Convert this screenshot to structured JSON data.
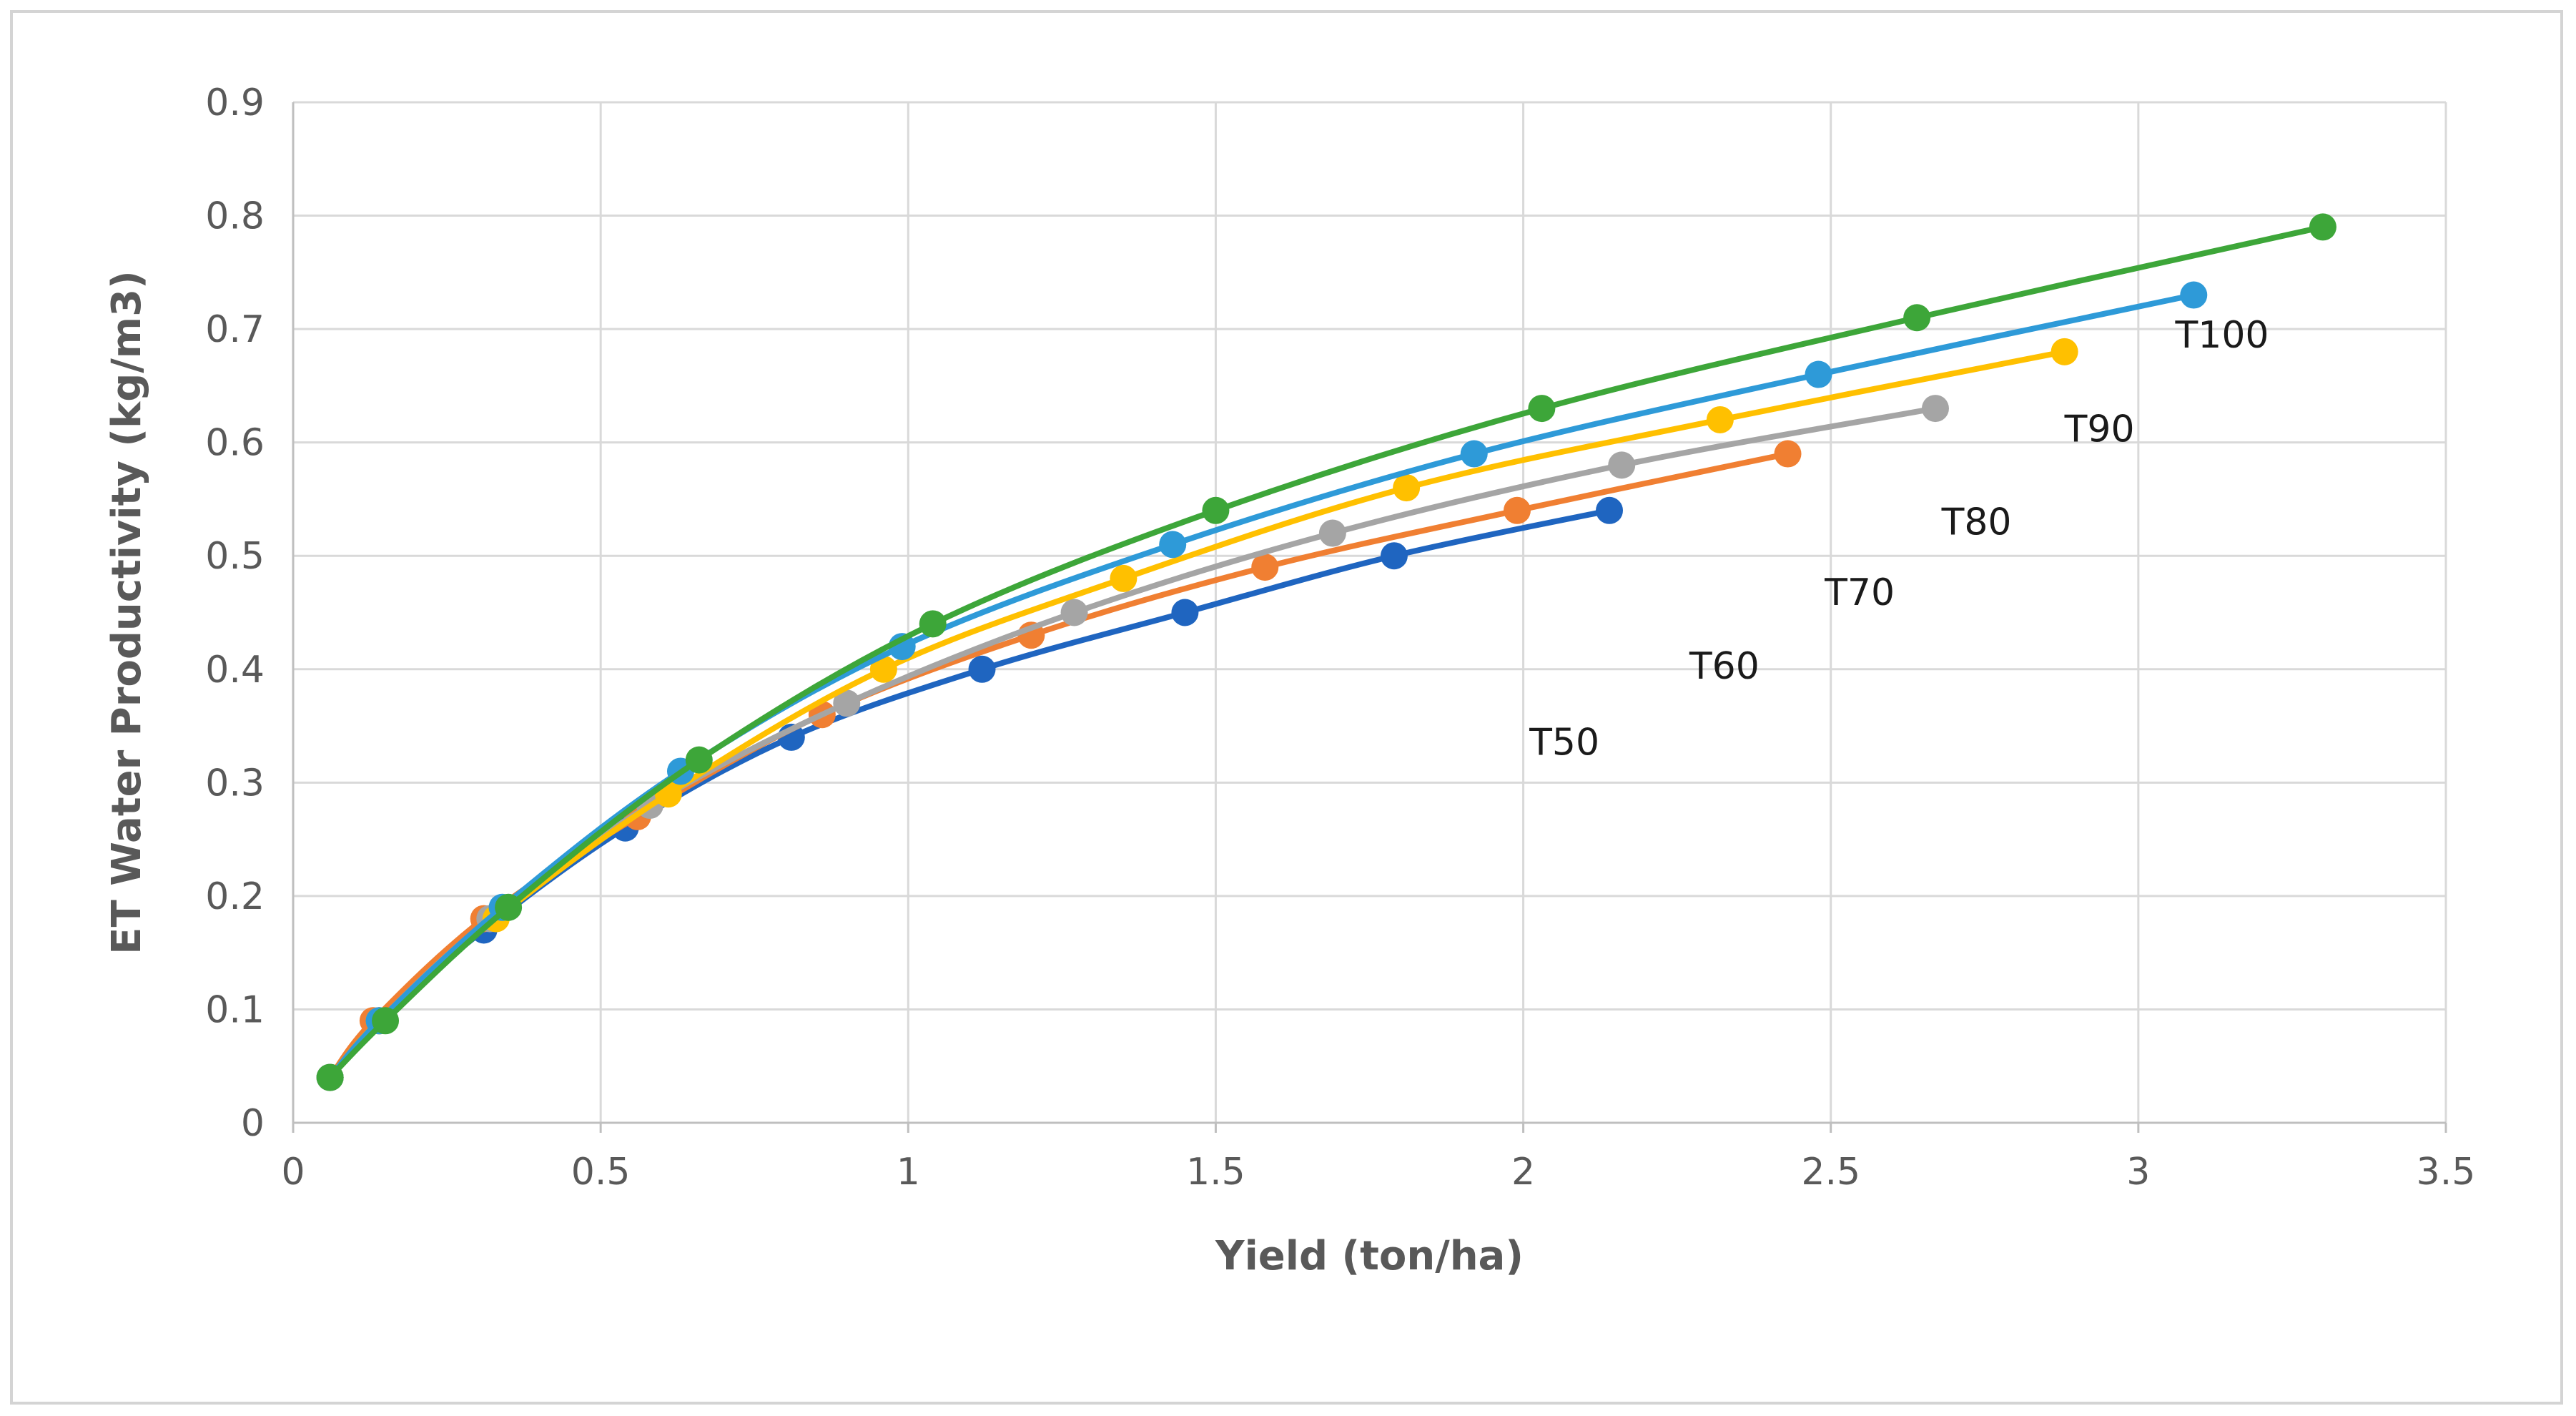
{
  "chart_data": {
    "type": "scatter",
    "title": "",
    "xlabel": "Yield (ton/ha)",
    "ylabel": "ET Water Productivity  (kg/m3)",
    "xlim": [
      0,
      3.5
    ],
    "ylim": [
      0,
      0.9
    ],
    "x_ticks": [
      0,
      0.5,
      1,
      1.5,
      2,
      2.5,
      3,
      3.5
    ],
    "x_tick_labels": [
      "0",
      "0.5",
      "1",
      "1.5",
      "2",
      "2.5",
      "3",
      "3.5"
    ],
    "y_ticks": [
      0,
      0.1,
      0.2,
      0.3,
      0.4,
      0.5,
      0.6,
      0.7,
      0.8,
      0.9
    ],
    "y_tick_labels": [
      "0",
      "0.1",
      "0.2",
      "0.3",
      "0.4",
      "0.5",
      "0.6",
      "0.7",
      "0.8",
      "0.9"
    ],
    "grid": true,
    "legend": "none",
    "trendline": "smooth curve through points",
    "series": [
      {
        "name": "T50",
        "color": "#1f65c0",
        "x": [
          0.06,
          0.14,
          0.31,
          0.54,
          0.81,
          1.12,
          1.45,
          1.79,
          2.14
        ],
        "y": [
          0.04,
          0.09,
          0.17,
          0.26,
          0.34,
          0.4,
          0.45,
          0.5,
          0.54
        ]
      },
      {
        "name": "T60",
        "color": "#f07f32",
        "x": [
          0.06,
          0.13,
          0.31,
          0.56,
          0.86,
          1.2,
          1.58,
          1.99,
          2.43
        ],
        "y": [
          0.04,
          0.09,
          0.18,
          0.27,
          0.36,
          0.43,
          0.49,
          0.54,
          0.59
        ]
      },
      {
        "name": "T70",
        "color": "#a5a5a5",
        "x": [
          0.06,
          0.14,
          0.32,
          0.58,
          0.9,
          1.27,
          1.69,
          2.16,
          2.67
        ],
        "y": [
          0.04,
          0.09,
          0.18,
          0.28,
          0.37,
          0.45,
          0.52,
          0.58,
          0.63
        ]
      },
      {
        "name": "T90",
        "color": "#ffc000",
        "x": [
          0.06,
          0.14,
          0.33,
          0.61,
          0.96,
          1.35,
          1.81,
          2.32,
          2.88
        ],
        "y": [
          0.04,
          0.09,
          0.18,
          0.29,
          0.4,
          0.48,
          0.56,
          0.62,
          0.68
        ]
      },
      {
        "name": "T100",
        "color": "#2e9ad8",
        "x": [
          0.06,
          0.14,
          0.34,
          0.63,
          0.99,
          1.43,
          1.92,
          2.48,
          3.09
        ],
        "y": [
          0.04,
          0.09,
          0.19,
          0.31,
          0.42,
          0.51,
          0.59,
          0.66,
          0.73
        ]
      },
      {
        "name": "",
        "color": "#3da639",
        "x": [
          0.06,
          0.15,
          0.35,
          0.66,
          1.04,
          1.5,
          2.03,
          2.64,
          3.3
        ],
        "y": [
          0.04,
          0.09,
          0.19,
          0.32,
          0.44,
          0.54,
          0.63,
          0.71,
          0.79
        ]
      }
    ],
    "annotations": [
      {
        "text": "T100",
        "x": 3.06,
        "y": 0.695
      },
      {
        "text": "T90",
        "x": 2.88,
        "y": 0.612
      },
      {
        "text": "T80",
        "x": 2.68,
        "y": 0.53
      },
      {
        "text": "T70",
        "x": 2.49,
        "y": 0.468
      },
      {
        "text": "T60",
        "x": 2.27,
        "y": 0.403
      },
      {
        "text": "T50",
        "x": 2.01,
        "y": 0.336
      }
    ]
  }
}
